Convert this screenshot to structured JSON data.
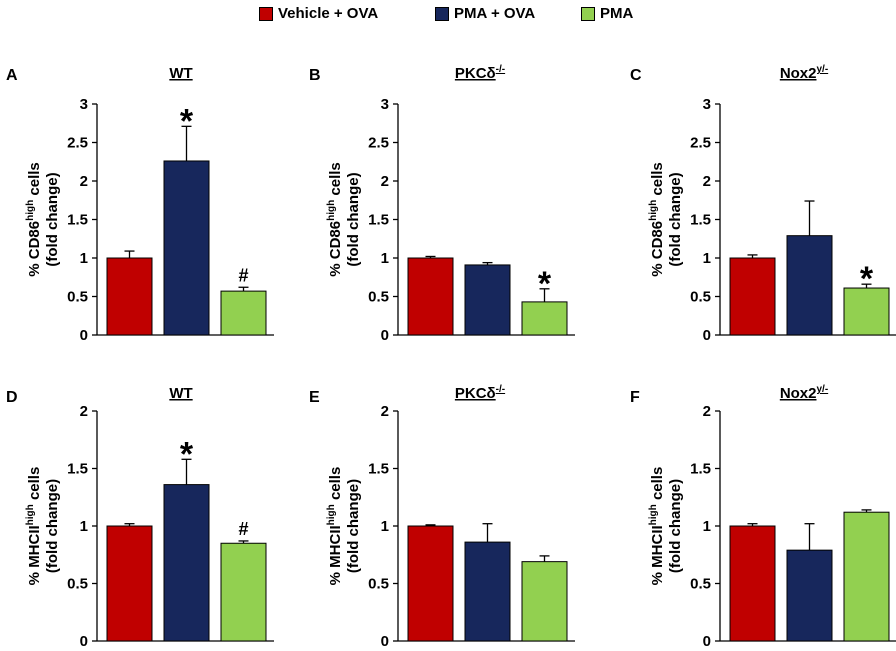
{
  "legend": [
    {
      "label": "Vehicle + OVA",
      "color": "#c00000"
    },
    {
      "label": "PMA + OVA",
      "color": "#17275c"
    },
    {
      "label": "PMA",
      "color": "#92d050"
    }
  ],
  "colors": {
    "bar_stroke": "#000000",
    "axis": "#000000"
  },
  "chart_data": [
    {
      "panel": "A",
      "type": "bar",
      "title": "WT",
      "title_sup": "",
      "ylabel_prefix": "% CD86",
      "ylabel_sup": "high",
      "ylabel_suffix": " cells",
      "ylabel_line2": "(fold change)",
      "ylim": [
        0,
        3
      ],
      "yticks": [
        0,
        0.5,
        1,
        1.5,
        2,
        2.5,
        3
      ],
      "ytick_labels": [
        "0",
        "0.5",
        "1",
        "1.5",
        "2",
        "2.5",
        "3"
      ],
      "categories": [
        "Vehicle + OVA",
        "PMA + OVA",
        "PMA"
      ],
      "values": [
        1.0,
        2.26,
        0.57
      ],
      "errors": [
        0.09,
        0.45,
        0.05
      ],
      "markers": [
        "",
        "*",
        "#"
      ]
    },
    {
      "panel": "B",
      "type": "bar",
      "title": "PKCδ",
      "title_sup": "-/-",
      "ylabel_prefix": "% CD86",
      "ylabel_sup": "high",
      "ylabel_suffix": " cells",
      "ylabel_line2": "(fold change)",
      "ylim": [
        0,
        3
      ],
      "yticks": [
        0,
        0.5,
        1,
        1.5,
        2,
        2.5,
        3
      ],
      "ytick_labels": [
        "0",
        "0.5",
        "1",
        "1.5",
        "2",
        "2.5",
        "3"
      ],
      "categories": [
        "Vehicle + OVA",
        "PMA + OVA",
        "PMA"
      ],
      "values": [
        1.0,
        0.91,
        0.43
      ],
      "errors": [
        0.02,
        0.03,
        0.17
      ],
      "markers": [
        "",
        "",
        "*"
      ]
    },
    {
      "panel": "C",
      "type": "bar",
      "title": "Nox2",
      "title_sup": "y/-",
      "ylabel_prefix": "% CD86",
      "ylabel_sup": "high",
      "ylabel_suffix": " cells",
      "ylabel_line2": "(fold change)",
      "ylim": [
        0,
        3
      ],
      "yticks": [
        0,
        0.5,
        1,
        1.5,
        2,
        2.5,
        3
      ],
      "ytick_labels": [
        "0",
        "0.5",
        "1",
        "1.5",
        "2",
        "2.5",
        "3"
      ],
      "categories": [
        "Vehicle + OVA",
        "PMA + OVA",
        "PMA"
      ],
      "values": [
        1.0,
        1.29,
        0.61
      ],
      "errors": [
        0.04,
        0.45,
        0.05
      ],
      "markers": [
        "",
        "",
        "*"
      ]
    },
    {
      "panel": "D",
      "type": "bar",
      "title": "WT",
      "title_sup": "",
      "ylabel_prefix": "% MHCII",
      "ylabel_sup": "high",
      "ylabel_suffix": " cells",
      "ylabel_line2": "(fold change)",
      "ylim": [
        0,
        2
      ],
      "yticks": [
        0,
        0.5,
        1,
        1.5,
        2
      ],
      "ytick_labels": [
        "0",
        "0.5",
        "1",
        "1.5",
        "2"
      ],
      "categories": [
        "Vehicle + OVA",
        "PMA + OVA",
        "PMA"
      ],
      "values": [
        1.0,
        1.36,
        0.85
      ],
      "errors": [
        0.02,
        0.22,
        0.02
      ],
      "markers": [
        "",
        "*",
        "#"
      ]
    },
    {
      "panel": "E",
      "type": "bar",
      "title": "PKCδ",
      "title_sup": "-/-",
      "ylabel_prefix": "% MHCII",
      "ylabel_sup": "high",
      "ylabel_suffix": " cells",
      "ylabel_line2": "(fold change)",
      "ylim": [
        0,
        2
      ],
      "yticks": [
        0,
        0.5,
        1,
        1.5,
        2
      ],
      "ytick_labels": [
        "0",
        "0.5",
        "1",
        "1.5",
        "2"
      ],
      "categories": [
        "Vehicle + OVA",
        "PMA + OVA",
        "PMA"
      ],
      "values": [
        1.0,
        0.86,
        0.69
      ],
      "errors": [
        0.01,
        0.16,
        0.05
      ],
      "markers": [
        "",
        "",
        ""
      ]
    },
    {
      "panel": "F",
      "type": "bar",
      "title": "Nox2",
      "title_sup": "y/-",
      "ylabel_prefix": "% MHCII",
      "ylabel_sup": "high",
      "ylabel_suffix": " cells",
      "ylabel_line2": "(fold change)",
      "ylim": [
        0,
        2
      ],
      "yticks": [
        0,
        0.5,
        1,
        1.5,
        2
      ],
      "ytick_labels": [
        "0",
        "0.5",
        "1",
        "1.5",
        "2"
      ],
      "categories": [
        "Vehicle + OVA",
        "PMA + OVA",
        "PMA"
      ],
      "values": [
        1.0,
        0.79,
        1.12
      ],
      "errors": [
        0.02,
        0.23,
        0.02
      ],
      "markers": [
        "",
        "",
        ""
      ]
    }
  ]
}
